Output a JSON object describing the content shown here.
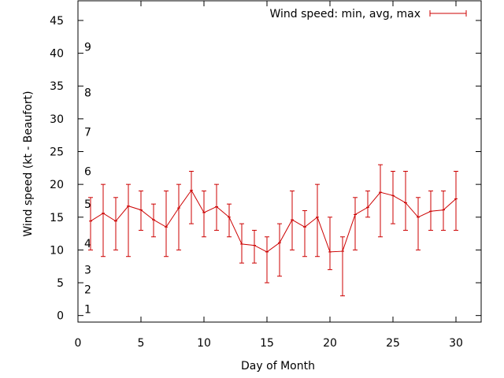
{
  "chart_data": {
    "type": "line",
    "title": "",
    "xlabel": "Day of Month",
    "ylabel": "Wind speed (kt - Beaufort)",
    "xlim": [
      0,
      32
    ],
    "ylim": [
      -1,
      48
    ],
    "xticks": [
      "0",
      "5",
      "10",
      "15",
      "20",
      "25",
      "30"
    ],
    "yticks": [
      "0",
      "5",
      "10",
      "15",
      "20",
      "25",
      "30",
      "35",
      "40",
      "45"
    ],
    "beaufort_labels": [
      {
        "label": "1",
        "y": 1
      },
      {
        "label": "2",
        "y": 4
      },
      {
        "label": "3",
        "y": 7
      },
      {
        "label": "4",
        "y": 11
      },
      {
        "label": "5",
        "y": 17
      },
      {
        "label": "6",
        "y": 22
      },
      {
        "label": "7",
        "y": 28
      },
      {
        "label": "8",
        "y": 34
      },
      {
        "label": "9",
        "y": 41
      }
    ],
    "legend": {
      "label": "Wind speed: min, avg, max",
      "position": "top-right"
    },
    "grid": false,
    "series": [
      {
        "name": "Wind speed: min, avg, max",
        "color": "#cc0000",
        "x": [
          1,
          2,
          3,
          4,
          5,
          6,
          7,
          8,
          9,
          10,
          11,
          12,
          13,
          14,
          15,
          16,
          17,
          18,
          19,
          20,
          21,
          22,
          23,
          24,
          25,
          26,
          27,
          28,
          29,
          30
        ],
        "avg": [
          14.4,
          15.6,
          14.4,
          16.7,
          16.1,
          14.6,
          13.5,
          16.4,
          19.1,
          15.7,
          16.6,
          15.0,
          10.9,
          10.7,
          9.7,
          11.1,
          14.6,
          13.5,
          15.0,
          9.7,
          9.8,
          15.4,
          16.5,
          18.8,
          18.3,
          17.2,
          15.0,
          15.9,
          16.1,
          17.8
        ],
        "min": [
          10,
          9,
          10,
          9,
          13,
          12,
          9,
          10,
          14,
          12,
          13,
          12,
          8,
          8,
          5,
          6,
          10,
          9,
          9,
          7,
          3,
          10,
          15,
          12,
          14,
          13,
          10,
          13,
          13,
          13
        ],
        "max": [
          18,
          20,
          18,
          20,
          19,
          17,
          19,
          20,
          22,
          19,
          20,
          17,
          14,
          13,
          12,
          14,
          19,
          16,
          20,
          15,
          12,
          18,
          19,
          23,
          22,
          22,
          18,
          19,
          19,
          22
        ]
      }
    ]
  }
}
